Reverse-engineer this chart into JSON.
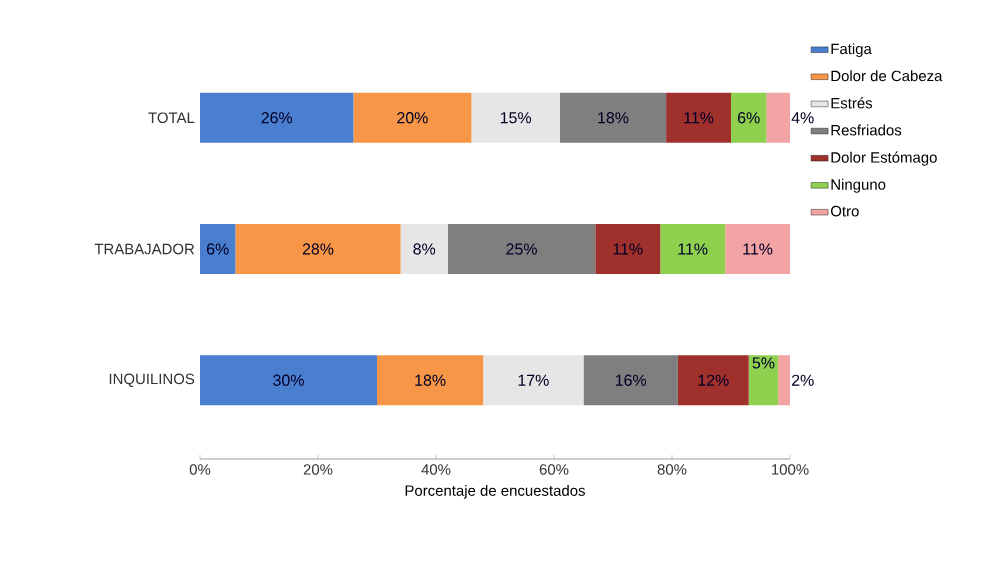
{
  "chart_data": {
    "type": "bar",
    "orientation": "horizontal",
    "stacked": true,
    "categories": [
      "TOTAL",
      "TRABAJADOR",
      "INQUILINOS"
    ],
    "xlabel": "Porcentaje de encuestados",
    "xlim": [
      0,
      100
    ],
    "xticks": [
      {
        "value": 0,
        "label": "0%"
      },
      {
        "value": 20,
        "label": "20%"
      },
      {
        "value": 40,
        "label": "40%"
      },
      {
        "value": 60,
        "label": "60%"
      },
      {
        "value": 80,
        "label": "80%"
      },
      {
        "value": 100,
        "label": "100%"
      }
    ],
    "legend": "right",
    "grid": false,
    "series": [
      {
        "name": "Fatiga",
        "color": "#4a7fd0",
        "values": [
          26,
          6,
          30
        ],
        "value_labels": [
          "26%",
          "6%",
          "30%"
        ]
      },
      {
        "name": "Dolor de Cabeza",
        "color": "#f79646",
        "values": [
          20,
          28,
          18
        ],
        "value_labels": [
          "20%",
          "28%",
          "18%"
        ]
      },
      {
        "name": "Estrés",
        "color": "#e6e6e6",
        "values": [
          15,
          8,
          17
        ],
        "value_labels": [
          "15%",
          "8%",
          "17%"
        ]
      },
      {
        "name": "Resfriados",
        "color": "#7f7f7f",
        "values": [
          18,
          25,
          16
        ],
        "value_labels": [
          "18%",
          "25%",
          "16%"
        ]
      },
      {
        "name": "Dolor Estómago",
        "color": "#a0302c",
        "values": [
          11,
          11,
          12
        ],
        "value_labels": [
          "11%",
          "11%",
          "12%"
        ]
      },
      {
        "name": "Ninguno",
        "color": "#8fd14f",
        "values": [
          6,
          11,
          5
        ],
        "value_labels": [
          "6%",
          "11%",
          "5%"
        ]
      },
      {
        "name": "Otro",
        "color": "#f2a3a3",
        "values": [
          4,
          11,
          2
        ],
        "value_labels": [
          "4%",
          "11%",
          "2%"
        ]
      }
    ]
  }
}
